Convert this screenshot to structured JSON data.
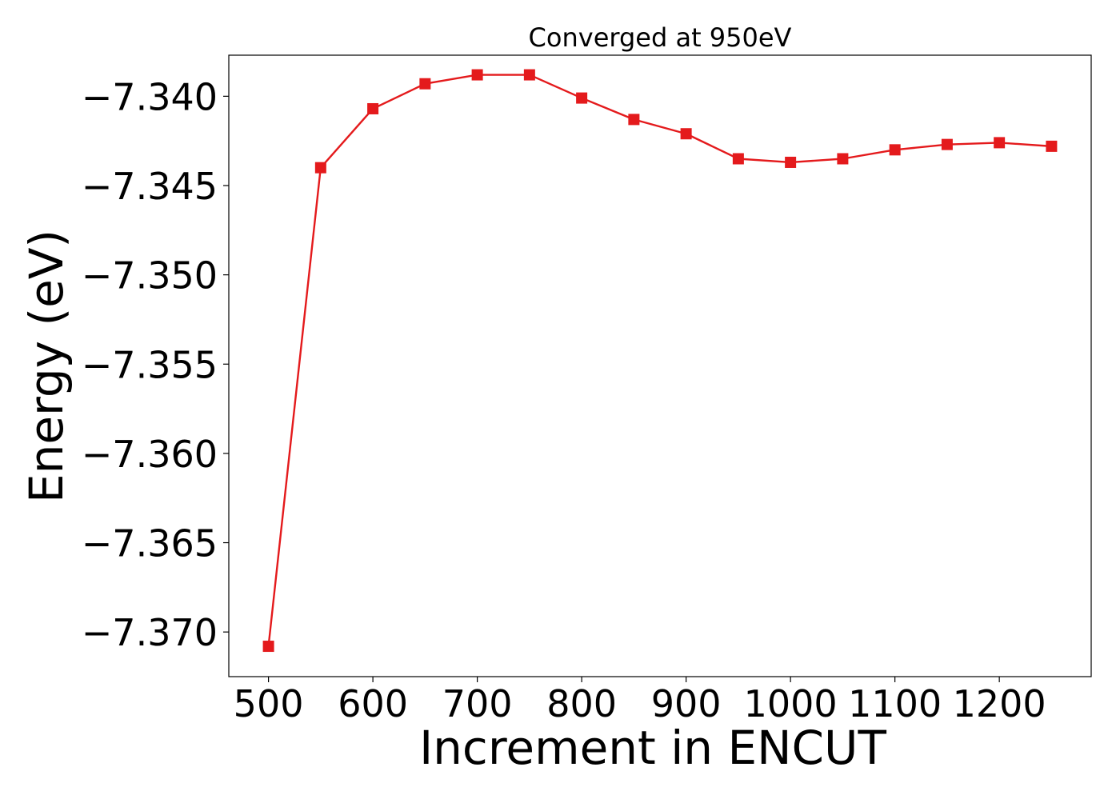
{
  "chart_data": {
    "type": "line",
    "title": "Converged at 950eV",
    "xlabel": "Increment in ENCUT",
    "ylabel": "Energy (eV)",
    "xlim": [
      462,
      1288
    ],
    "ylim": [
      -7.3725,
      -7.3377
    ],
    "x_ticks": [
      500,
      600,
      700,
      800,
      900,
      1000,
      1100,
      1200
    ],
    "x_tick_labels": [
      "500",
      "600",
      "700",
      "800",
      "900",
      "1000",
      "1100",
      "1200"
    ],
    "y_ticks": [
      -7.34,
      -7.345,
      -7.35,
      -7.355,
      -7.36,
      -7.365,
      -7.37
    ],
    "y_tick_labels": [
      "−7.340",
      "−7.345",
      "−7.350",
      "−7.355",
      "−7.360",
      "−7.365",
      "−7.370"
    ],
    "grid": false,
    "legend": "none",
    "series": [
      {
        "color": "#e41a1c",
        "marker": "square",
        "x": [
          500,
          550,
          600,
          650,
          700,
          750,
          800,
          850,
          900,
          950,
          1000,
          1050,
          1100,
          1150,
          1200,
          1250
        ],
        "y": [
          -7.3708,
          -7.344,
          -7.3407,
          -7.3393,
          -7.3388,
          -7.3388,
          -7.3401,
          -7.3413,
          -7.3421,
          -7.3435,
          -7.3437,
          -7.3435,
          -7.343,
          -7.3427,
          -7.3426,
          -7.3428
        ]
      }
    ]
  }
}
